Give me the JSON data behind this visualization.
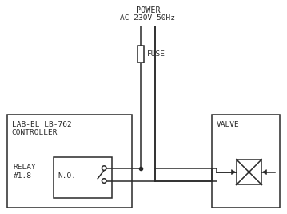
{
  "bg_color": "#ffffff",
  "line_color": "#2a2a2a",
  "power_line1": "POWER",
  "power_line2": "AC 230V 50Hz",
  "fuse_label": "FUSE",
  "ctrl_label1": "LAB-EL LB-762",
  "ctrl_label2": "CONTROLLER",
  "relay_label1": "RELAY",
  "relay_label2": "#1.8",
  "no_label": "N.O.",
  "valve_label": "VALVE",
  "font_size": 6.8,
  "font_family": "monospace",
  "lw": 1.1
}
